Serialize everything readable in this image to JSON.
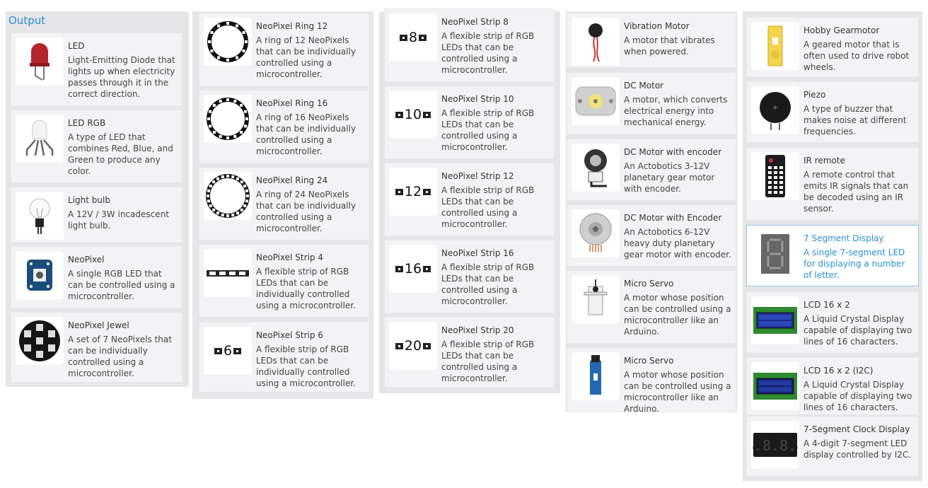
{
  "panel": {
    "title": "Output"
  },
  "columns": [
    [
      {
        "icon": "led-icon",
        "name": "LED",
        "desc": "Light-Emitting Diode that lights up when electricity passes through it in the correct direction."
      },
      {
        "icon": "led-rgb-icon",
        "name": "LED RGB",
        "desc": "A type of LED that combines Red, Blue, and Green to produce any color."
      },
      {
        "icon": "light-bulb-icon",
        "name": "Light bulb",
        "desc": "A 12V / 3W incadescent light bulb."
      },
      {
        "icon": "neopixel-icon",
        "name": "NeoPixel",
        "desc": "A single RGB LED that can be controlled using a microcontroller."
      },
      {
        "icon": "neopixel-jewel-icon",
        "name": "NeoPixel Jewel",
        "desc": "A set of 7 NeoPixels that can be individually controlled using a microcontroller."
      }
    ],
    [
      {
        "icon": "neopixel-ring-12-icon",
        "name": "NeoPixel Ring 12",
        "desc": "A ring of 12 NeoPixels that can be individually controlled using a microcontroller."
      },
      {
        "icon": "neopixel-ring-16-icon",
        "name": "NeoPixel Ring 16",
        "desc": "A ring of 16 NeoPixels that can be individually controlled using a microcontroller."
      },
      {
        "icon": "neopixel-ring-24-icon",
        "name": "NeoPixel Ring 24",
        "desc": "A ring of 24 NeoPixels that can be individually controlled using a microcontroller."
      },
      {
        "icon": "neopixel-strip-4-icon",
        "name": "NeoPixel Strip 4",
        "desc": "A flexible strip of RGB LEDs that can be individually controlled using a microcontroller."
      },
      {
        "icon": "neopixel-strip-6-icon",
        "name": "NeoPixel Strip 6",
        "desc": "A flexible strip of RGB LEDs that can be individually controlled using a microcontroller.",
        "strip": "6"
      }
    ],
    [
      {
        "icon": "neopixel-strip-8-icon",
        "name": "NeoPixel Strip 8",
        "desc": "A flexible strip of RGB LEDs that can be controlled using a microcontroller.",
        "strip": "8"
      },
      {
        "icon": "neopixel-strip-10-icon",
        "name": "NeoPixel Strip 10",
        "desc": "A flexible strip of RGB LEDs that can be controlled using a microcontroller.",
        "strip": "10"
      },
      {
        "icon": "neopixel-strip-12-icon",
        "name": "NeoPixel Strip 12",
        "desc": "A flexible strip of RGB LEDs that can be controlled using a microcontroller.",
        "strip": "12"
      },
      {
        "icon": "neopixel-strip-16-icon",
        "name": "NeoPixel Strip 16",
        "desc": "A flexible strip of RGB LEDs that can be controlled using a microcontroller.",
        "strip": "16"
      },
      {
        "icon": "neopixel-strip-20-icon",
        "name": "NeoPixel Strip 20",
        "desc": "A flexible strip of RGB LEDs that can be controlled using a microcontroller.",
        "strip": "20"
      }
    ],
    [
      {
        "icon": "vibration-motor-icon",
        "name": "Vibration Motor",
        "desc": "A motor that vibrates when powered."
      },
      {
        "icon": "dc-motor-icon",
        "name": "DC Motor",
        "desc": "A motor, which converts electrical energy into mechanical energy."
      },
      {
        "icon": "dc-motor-encoder-icon",
        "name": "DC Motor with encoder",
        "desc": "An Actobotics 3-12V planetary gear motor with encoder."
      },
      {
        "icon": "dc-motor-encoder-heavy-icon",
        "name": "DC Motor with Encoder",
        "desc": "An Actobotics 6-12V heavy duty planetary gear motor with encoder."
      },
      {
        "icon": "micro-servo-icon",
        "name": "Micro Servo",
        "desc": "A motor whose position can be controlled using a microcontroller like an Arduino."
      },
      {
        "icon": "micro-servo-blue-icon",
        "name": "Micro Servo",
        "desc": "A motor whose position can be controlled using a microcontroller like an Arduino."
      }
    ],
    [
      {
        "icon": "hobby-gearmotor-icon",
        "name": "Hobby Gearmotor",
        "desc": "A geared motor that is often used to drive robot wheels."
      },
      {
        "icon": "piezo-icon",
        "name": "Piezo",
        "desc": "A type of buzzer that makes noise at different frequencies."
      },
      {
        "icon": "ir-remote-icon",
        "name": "IR remote",
        "desc": "A remote control that emits IR signals that can be decoded using an IR sensor."
      },
      {
        "icon": "seven-segment-display-icon",
        "name": "7 Segment Display",
        "desc": "A single 7-segment LED for displaying a number of letter.",
        "selected": true
      },
      {
        "icon": "lcd-16x2-icon",
        "name": "LCD 16 x 2",
        "desc": "A Liquid Crystal Display capable of displaying two lines of 16 characters."
      },
      {
        "icon": "lcd-16x2-i2c-icon",
        "name": "LCD 16 x 2 (I2C)",
        "desc": "A Liquid Crystal Display capable of displaying two lines of 16 characters."
      },
      {
        "icon": "seven-segment-clock-icon",
        "name": "7-Segment Clock Display",
        "desc": "A 4-digit 7-segment LED display controlled by I2C."
      }
    ]
  ],
  "colors": {
    "accent": "#2a8fd6",
    "panel_bg": "#e6e6e8",
    "card_bg": "#f3f3f5"
  }
}
